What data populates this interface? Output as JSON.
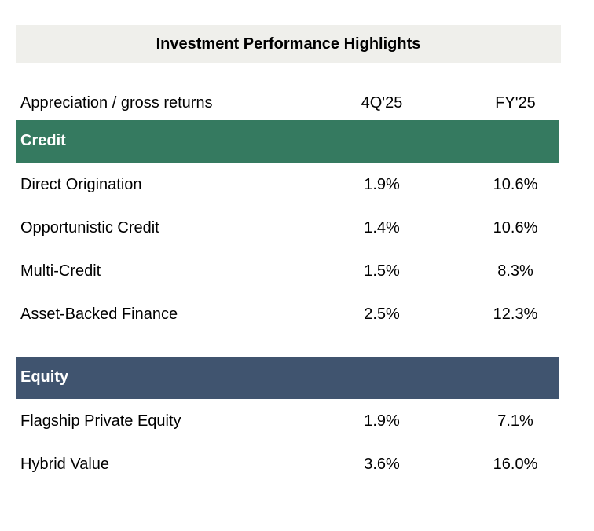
{
  "title": "Investment Performance Highlights",
  "header": {
    "label": "Appreciation / gross returns",
    "col1": "4Q'25",
    "col2": "FY'25"
  },
  "colors": {
    "title_bg": "#efefeb",
    "credit_bg": "#357a60",
    "equity_bg": "#40546f"
  },
  "credit": {
    "label": "Credit",
    "rows": [
      {
        "name": "Direct Origination",
        "q": "1.9%",
        "fy": "10.6%"
      },
      {
        "name": "Opportunistic Credit",
        "q": "1.4%",
        "fy": "10.6%"
      },
      {
        "name": "Multi-Credit",
        "q": "1.5%",
        "fy": "8.3%"
      },
      {
        "name": "Asset-Backed Finance",
        "q": "2.5%",
        "fy": "12.3%"
      }
    ]
  },
  "equity": {
    "label": "Equity",
    "rows": [
      {
        "name": "Flagship Private Equity",
        "q": "1.9%",
        "fy": "7.1%"
      },
      {
        "name": "Hybrid Value",
        "q": "3.6%",
        "fy": "16.0%"
      }
    ]
  }
}
